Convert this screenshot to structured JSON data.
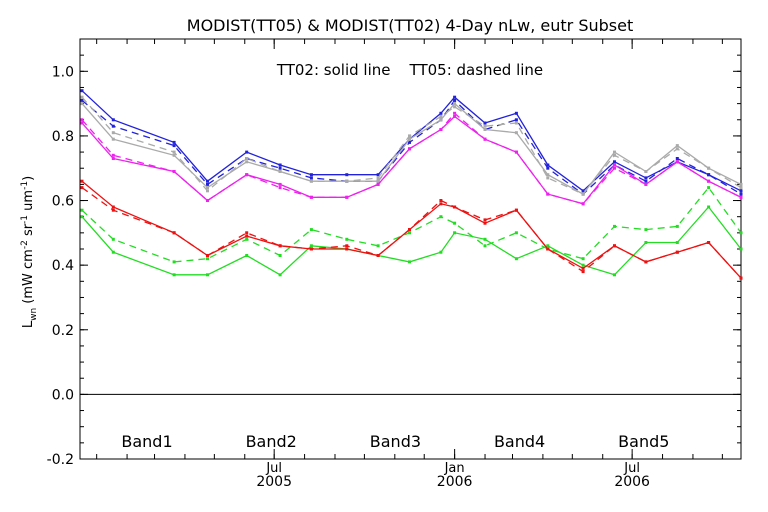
{
  "chart_data": {
    "type": "line",
    "title": "MODIST(TT05) & MODIST(TT02) 4-Day nLw, eutr Subset",
    "annotation": "TT02: solid line    TT05: dashed line",
    "ylabel_main": "L",
    "ylabel_sub": "wn",
    "ylabel_units": " (mW cm",
    "ylabel_sup1": "-2",
    "ylabel_mid": " sr",
    "ylabel_sup2": "-1",
    "ylabel_mid2": " um",
    "ylabel_sup3": "-1",
    "ylabel_end": ")",
    "ylim": [
      -0.2,
      1.1
    ],
    "yticks": [
      "1.0",
      "0.8",
      "0.6",
      "0.4",
      "0.2",
      "0.0",
      "-0.2"
    ],
    "ytick_values": [
      1.0,
      0.8,
      0.6,
      0.4,
      0.2,
      0.0,
      -0.2
    ],
    "xlim": [
      "2004-12-15",
      "2006-10-20"
    ],
    "x_month_ticks": [
      {
        "date": "2005-07-01",
        "month": "Jul",
        "year": "2005"
      },
      {
        "date": "2006-01-01",
        "month": "Jan",
        "year": "2006"
      },
      {
        "date": "2006-07-01",
        "month": "Jul",
        "year": "2006"
      }
    ],
    "zero_line": true,
    "legend_placement": "bottom",
    "x": [
      "2004-12-17",
      "2005-01-18",
      "2005-03-21",
      "2005-04-24",
      "2005-06-03",
      "2005-07-07",
      "2005-08-08",
      "2005-09-13",
      "2005-10-15",
      "2005-11-16",
      "2005-12-18",
      "2006-01-01",
      "2006-02-01",
      "2006-03-05",
      "2006-04-06",
      "2006-05-12",
      "2006-06-13",
      "2006-07-15",
      "2006-08-16",
      "2006-09-17",
      "2006-10-20"
    ],
    "series": [
      {
        "name": "Band1",
        "color": "#22dd22",
        "style": "solid",
        "values": [
          0.55,
          0.44,
          0.37,
          0.37,
          0.43,
          0.37,
          0.46,
          0.45,
          0.43,
          0.41,
          0.44,
          0.5,
          0.48,
          0.42,
          0.46,
          0.4,
          0.37,
          0.47,
          0.47,
          0.58,
          0.45
        ]
      },
      {
        "name": "Band1",
        "color": "#22dd22",
        "style": "dashed",
        "values": [
          0.57,
          0.48,
          0.41,
          0.42,
          0.48,
          0.43,
          0.51,
          0.48,
          0.46,
          0.5,
          0.55,
          0.53,
          0.46,
          0.5,
          0.45,
          0.42,
          0.52,
          0.51,
          0.52,
          0.64,
          0.5
        ]
      },
      {
        "name": "Band2",
        "color": "#ee1111",
        "style": "solid",
        "values": [
          0.66,
          0.58,
          0.5,
          0.43,
          0.49,
          0.46,
          0.45,
          0.45,
          0.43,
          0.51,
          0.59,
          0.58,
          0.53,
          0.57,
          0.45,
          0.39,
          0.46,
          0.41,
          0.44,
          0.47,
          0.36
        ]
      },
      {
        "name": "Band2",
        "color": "#ee1111",
        "style": "dashed",
        "values": [
          0.64,
          0.57,
          0.5,
          0.43,
          0.5,
          0.46,
          0.45,
          0.46,
          0.43,
          0.51,
          0.6,
          0.58,
          0.54,
          0.57,
          0.45,
          0.38,
          0.46,
          0.41,
          0.44,
          0.47,
          0.36
        ]
      },
      {
        "name": "Band3",
        "color": "#2222dd",
        "style": "solid",
        "values": [
          0.94,
          0.85,
          0.78,
          0.66,
          0.75,
          0.71,
          0.68,
          0.68,
          0.68,
          0.79,
          0.87,
          0.92,
          0.84,
          0.87,
          0.71,
          0.63,
          0.72,
          0.67,
          0.72,
          0.68,
          0.63
        ]
      },
      {
        "name": "Band3",
        "color": "#2222dd",
        "style": "dashed",
        "values": [
          0.91,
          0.83,
          0.77,
          0.65,
          0.73,
          0.7,
          0.67,
          0.66,
          0.66,
          0.78,
          0.85,
          0.91,
          0.82,
          0.85,
          0.7,
          0.62,
          0.71,
          0.66,
          0.73,
          0.68,
          0.62
        ]
      },
      {
        "name": "Band4",
        "color": "#aaaaaa",
        "style": "solid",
        "values": [
          0.9,
          0.79,
          0.74,
          0.64,
          0.72,
          0.69,
          0.66,
          0.66,
          0.66,
          0.79,
          0.85,
          0.9,
          0.82,
          0.81,
          0.68,
          0.62,
          0.75,
          0.69,
          0.77,
          0.7,
          0.65
        ]
      },
      {
        "name": "Band4",
        "color": "#aaaaaa",
        "style": "dashed",
        "values": [
          0.92,
          0.81,
          0.75,
          0.63,
          0.73,
          0.69,
          0.66,
          0.66,
          0.67,
          0.8,
          0.86,
          0.89,
          0.83,
          0.84,
          0.67,
          0.62,
          0.74,
          0.69,
          0.76,
          0.7,
          0.64
        ]
      },
      {
        "name": "Band5",
        "color": "#ee22ee",
        "style": "solid",
        "values": [
          0.84,
          0.73,
          0.69,
          0.6,
          0.68,
          0.65,
          0.61,
          0.61,
          0.65,
          0.76,
          0.82,
          0.86,
          0.79,
          0.75,
          0.62,
          0.59,
          0.71,
          0.65,
          0.72,
          0.66,
          0.61
        ]
      },
      {
        "name": "Band5",
        "color": "#ee22ee",
        "style": "dashed",
        "values": [
          0.85,
          0.74,
          0.69,
          0.6,
          0.68,
          0.64,
          0.61,
          0.61,
          0.65,
          0.76,
          0.82,
          0.87,
          0.79,
          0.75,
          0.62,
          0.59,
          0.7,
          0.65,
          0.72,
          0.66,
          0.61
        ]
      }
    ],
    "legend": [
      {
        "label": "Band1",
        "color": "#22dd22"
      },
      {
        "label": "Band2",
        "color": "#ee1111"
      },
      {
        "label": "Band3",
        "color": "#2222dd"
      },
      {
        "label": "Band4",
        "color": "#aaaaaa"
      },
      {
        "label": "Band5",
        "color": "#ee22ee"
      }
    ]
  }
}
